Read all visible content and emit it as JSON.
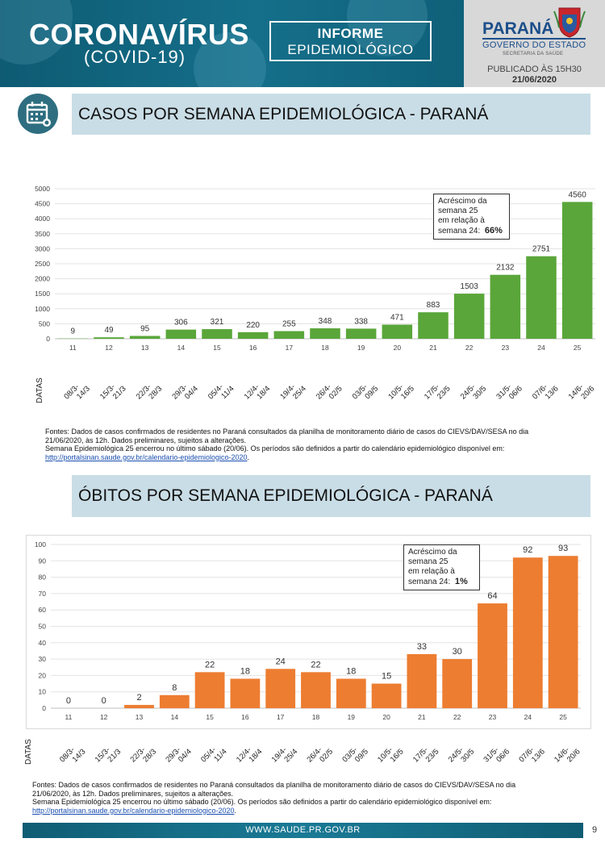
{
  "header": {
    "title": "CORONAVÍRUS",
    "subtitle": "(COVID-19)",
    "informe_l1": "INFORME",
    "informe_l2": "EPIDEMIOLÓGICO",
    "gov_name": "PARANÁ",
    "gov_estado": "GOVERNO DO ESTADO",
    "gov_sec": "SECRETARIA DA SAÚDE",
    "published": "PUBLICADO ÀS 15H30",
    "published_date": "21/06/2020",
    "brand_color": "#156f8a"
  },
  "section1": {
    "title": "CASOS POR SEMANA EPIDEMIOLÓGICA - PARANÁ",
    "icon": "calendar-virus-icon"
  },
  "section2": {
    "title": "ÓBITOS POR SEMANA EPIDEMIOLÓGICA - PARANÁ"
  },
  "datas_label": "DATAS",
  "chart_data": [
    {
      "type": "bar",
      "color": "#5aa63a",
      "categories": [
        "11",
        "12",
        "13",
        "14",
        "15",
        "16",
        "17",
        "18",
        "19",
        "20",
        "21",
        "22",
        "23",
        "24",
        "25"
      ],
      "date_ranges": [
        "08/3-14/3",
        "15/3-21/3",
        "22/3-28/3",
        "29/3-04/4",
        "05/4-11/4",
        "12/4-18/4",
        "19/4-25/4",
        "26/4-02/5",
        "03/5-09/5",
        "10/5-16/5",
        "17/5-23/5",
        "24/5-30/5",
        "31/5-06/6",
        "07/6-13/6",
        "14/6-20/6"
      ],
      "values": [
        9,
        49,
        95,
        306,
        321,
        220,
        255,
        348,
        338,
        471,
        883,
        1503,
        2132,
        2751,
        4560
      ],
      "ylim": [
        0,
        5000
      ],
      "yticks": [
        0,
        500,
        1000,
        1500,
        2000,
        2500,
        3000,
        3500,
        4000,
        4500,
        5000
      ],
      "grid": true,
      "callout": {
        "lines": [
          "Acréscimo da",
          "semana 25",
          "em relação à",
          "semana 24:"
        ],
        "value": "66%"
      }
    },
    {
      "type": "bar",
      "color": "#ed7d31",
      "categories": [
        "11",
        "12",
        "13",
        "14",
        "15",
        "16",
        "17",
        "18",
        "19",
        "20",
        "21",
        "22",
        "23",
        "24",
        "25"
      ],
      "date_ranges": [
        "08/3-14/3",
        "15/3-21/3",
        "22/3-28/3",
        "29/3-04/4",
        "05/4-11/4",
        "12/4-18/4",
        "19/4-25/4",
        "26/4-02/5",
        "03/5-09/5",
        "10/5-16/5",
        "17/5-23/5",
        "24/5-30/5",
        "31/5-06/6",
        "07/6-13/6",
        "14/6-20/6"
      ],
      "values": [
        0,
        0,
        2,
        8,
        22,
        18,
        24,
        22,
        18,
        15,
        33,
        30,
        64,
        92,
        93
      ],
      "ylim": [
        0,
        100
      ],
      "yticks": [
        0,
        10,
        20,
        30,
        40,
        50,
        60,
        70,
        80,
        90,
        100
      ],
      "grid": true,
      "callout": {
        "lines": [
          "Acréscimo da",
          "semana 25",
          "em relação à",
          "semana 24:"
        ],
        "value": "1%"
      }
    }
  ],
  "sources1": {
    "line1": "Fontes: Dados de casos confirmados de residentes no Paraná consultados da planilha de monitoramento diário de casos do CIEVS/DAV/SESA no dia",
    "line2": "21/06/2020, às 12h. Dados preliminares, sujeitos a alterações.",
    "line3": "Semana Epidemiológica 25 encerrou no último sábado (20/06). Os períodos são definidos a partir do calendário epidemiológico disponível em:",
    "link": "http://portalsinan.saude.gov.br/calendario-epidemiologico-2020",
    "suffix": "."
  },
  "sources2": {
    "line1": "Fontes: Dados de casos confirmados de residentes no Paraná consultados da planilha de monitoramento diário de casos do CIEVS/DAV/SESA no dia",
    "line2": "21/06/2020, às 12h. Dados preliminares, sujeitos a alterações.",
    "line3": "Semana Epidemiológica 25 encerrou no último sábado (20/06). Os períodos são definidos a partir do calendário epidemiológico disponível em:",
    "link": "http://portalsinan.saude.gov.br/calendario-epidemiologico-2020",
    "suffix": "."
  },
  "footer": {
    "url": "WWW.SAUDE.PR.GOV.BR",
    "page": "9"
  }
}
